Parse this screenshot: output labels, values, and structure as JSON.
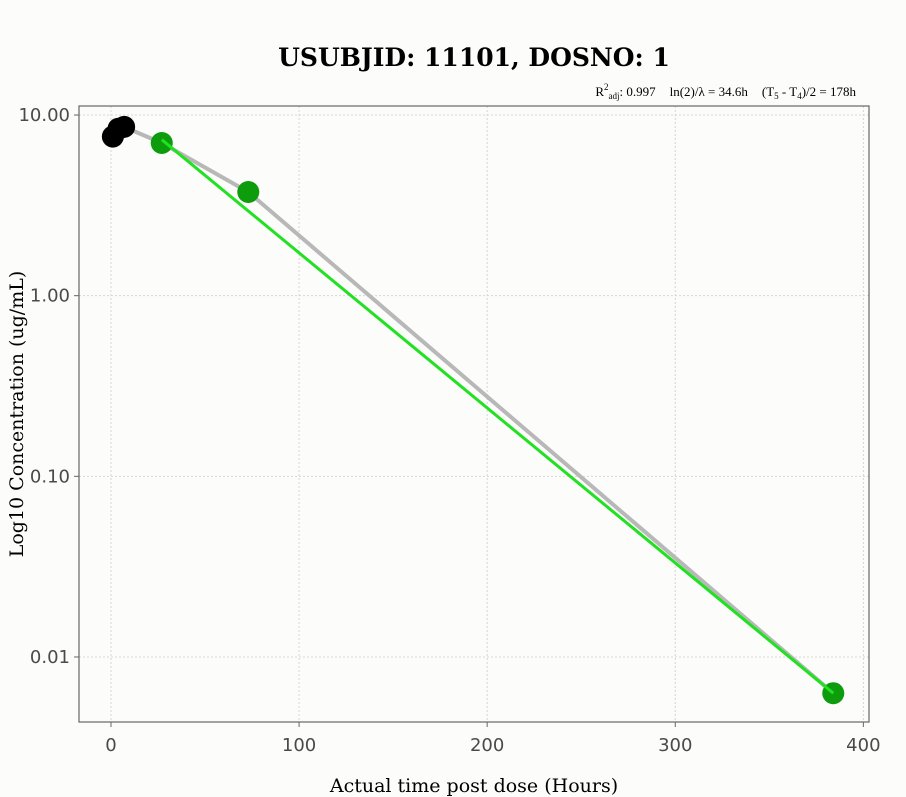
{
  "chart_data": {
    "type": "scatter",
    "title": "USUBJID: 11101, DOSNO: 1",
    "xlabel": "Actual time post dose (Hours)",
    "ylabel": "Log10 Concentration (ug/mL)",
    "xlim": [
      -17,
      403
    ],
    "ylim_log10": [
      -2.36,
      1.05
    ],
    "y_scale": "log10",
    "grid": true,
    "x_ticks": [
      0,
      100,
      200,
      300,
      400
    ],
    "x_tick_labels": [
      "0",
      "100",
      "200",
      "300",
      "400"
    ],
    "y_ticks": [
      0.01,
      0.1,
      1,
      10
    ],
    "y_tick_labels": [
      "0.01",
      "0.10",
      "1.00",
      "10.00"
    ],
    "annotation": {
      "r2_label": "R",
      "r2_sup": "2",
      "r2_sub": "adj",
      "r2_value": ": 0.997",
      "halflife": "ln(2)/λ = 34.6h",
      "interval_open": "(T",
      "interval_sub1": "5",
      "interval_mid": " - T",
      "interval_sub2": "4",
      "interval_close": ")/2 = 178h"
    },
    "series": [
      {
        "type": "line",
        "color": "#b8b8b8",
        "x": [
          1,
          4,
          7,
          27,
          73,
          384
        ],
        "y": [
          7.6,
          8.4,
          8.6,
          7.0,
          3.75,
          0.0063
        ]
      },
      {
        "type": "points",
        "color": "#000000",
        "x": [
          1,
          4,
          7
        ],
        "y": [
          7.6,
          8.4,
          8.6
        ]
      },
      {
        "type": "points",
        "color": "#0c9c0c",
        "x": [
          27,
          73,
          384
        ],
        "y": [
          7.0,
          3.75,
          0.0063
        ]
      },
      {
        "type": "regression",
        "color": "#22e022",
        "x": [
          27,
          384
        ],
        "y": [
          7.3,
          0.0063
        ]
      }
    ]
  }
}
